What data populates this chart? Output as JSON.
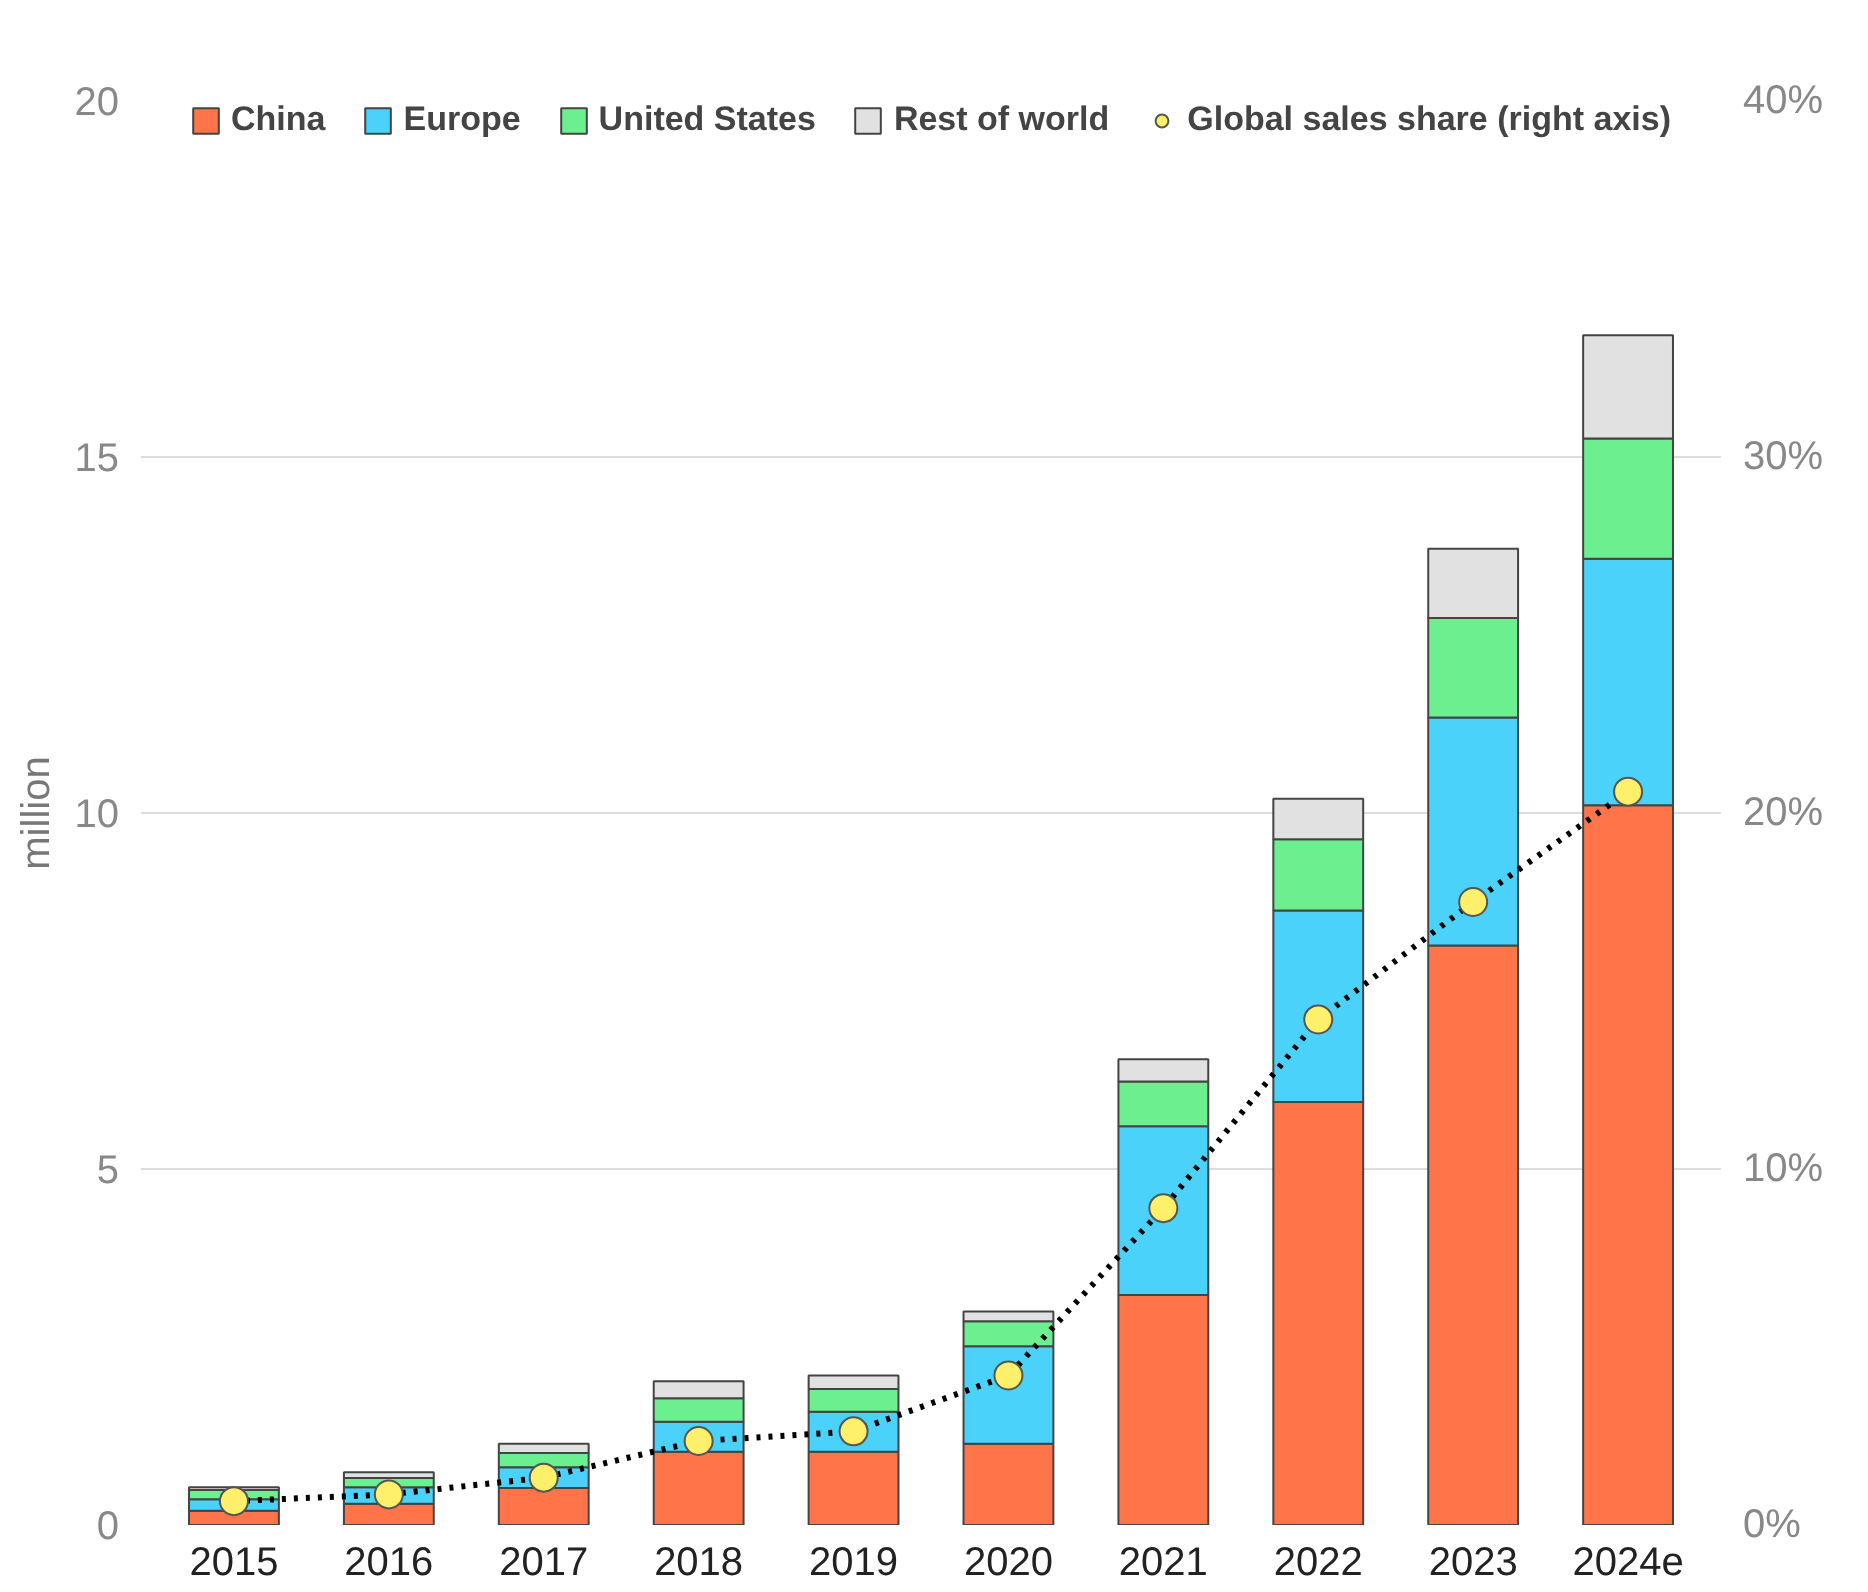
{
  "chart_data": {
    "type": "bar",
    "stacked": true,
    "ylabel": "million",
    "categories": [
      "2015",
      "2016",
      "2017",
      "2018",
      "2019",
      "2020",
      "2021",
      "2022",
      "2023",
      "2024e"
    ],
    "series": [
      {
        "name": "China",
        "color": "#ff7549",
        "values": [
          0.2,
          0.3,
          0.52,
          1.03,
          1.03,
          1.14,
          3.23,
          5.94,
          8.14,
          10.11
        ]
      },
      {
        "name": "Europe",
        "color": "#4bd2fb",
        "values": [
          0.16,
          0.23,
          0.29,
          0.42,
          0.56,
          1.37,
          2.37,
          2.69,
          3.2,
          3.46
        ]
      },
      {
        "name": "United States",
        "color": "#6cf08f",
        "values": [
          0.13,
          0.13,
          0.2,
          0.33,
          0.32,
          0.35,
          0.63,
          1.0,
          1.4,
          1.69
        ]
      },
      {
        "name": "Rest of world",
        "color": "#e1e1e1",
        "values": [
          0.04,
          0.08,
          0.13,
          0.24,
          0.19,
          0.14,
          0.31,
          0.57,
          0.97,
          1.45
        ]
      },
      {
        "name": "Global sales share (right axis)",
        "type": "line",
        "axis": "y2",
        "color": "#fff06b",
        "marker": "circle",
        "line_style": "dotted",
        "values": [
          0.67,
          0.86,
          1.33,
          2.36,
          2.63,
          4.2,
          8.9,
          14.2,
          17.5,
          20.6
        ]
      }
    ],
    "ylim": [
      0,
      20
    ],
    "yticks": [
      0,
      5,
      10,
      15,
      20
    ],
    "y2lim": [
      0,
      40
    ],
    "y2ticks": [
      {
        "value": 0,
        "label": "0%"
      },
      {
        "value": 10,
        "label": "10%"
      },
      {
        "value": 20,
        "label": "20%"
      },
      {
        "value": 30,
        "label": "30%"
      },
      {
        "value": 40,
        "label": "40%"
      }
    ],
    "grid": "y",
    "legend": "top"
  }
}
